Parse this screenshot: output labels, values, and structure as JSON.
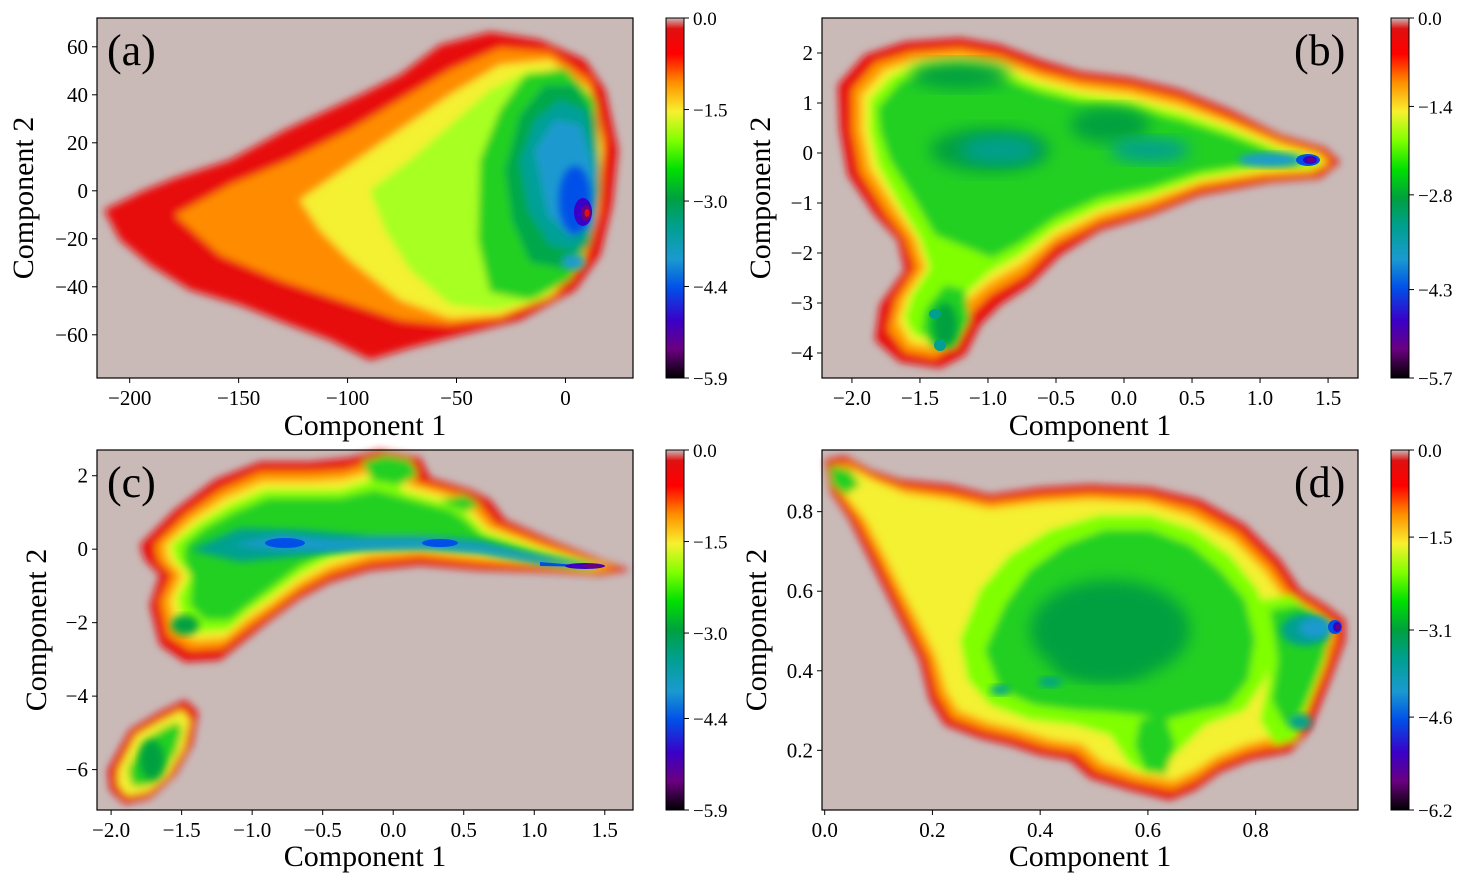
{
  "colors": {
    "background": "#c9b9b7",
    "colormap": [
      "#000000",
      "#6a0080",
      "#3a00c8",
      "#0050e8",
      "#1a9ad0",
      "#00a090",
      "#00a040",
      "#00e000",
      "#80ff00",
      "#f8f030",
      "#ff9000",
      "#ff0000",
      "#e01010"
    ]
  },
  "chart_data": [
    {
      "type": "heatmap",
      "panel_label": "(a)",
      "xlabel": "Component 1",
      "ylabel": "Component 2",
      "xlim": [
        -215,
        31
      ],
      "ylim": [
        -78,
        72
      ],
      "xticks": [
        -200,
        -150,
        -100,
        -50,
        0
      ],
      "xtick_labels": [
        "−200",
        "−150",
        "−100",
        "−50",
        "0"
      ],
      "yticks": [
        60,
        40,
        20,
        0,
        -20,
        -40,
        -60
      ],
      "ytick_labels": [
        "60",
        "40",
        "20",
        "0",
        "−20",
        "−40",
        "−60"
      ],
      "colorbar": {
        "min": -5.9,
        "max": 0.0,
        "ticks": [
          0.0,
          -1.5,
          -3.0,
          -4.4,
          -5.9
        ],
        "tick_labels": [
          "0.0",
          "−1.5",
          "−3.0",
          "−4.4",
          "−5.9"
        ]
      },
      "minimum": {
        "x": 12,
        "y": -10
      }
    },
    {
      "type": "heatmap",
      "panel_label": "(b)",
      "xlabel": "Component 1",
      "ylabel": "Component 2",
      "xlim": [
        -2.22,
        1.72
      ],
      "ylim": [
        -4.5,
        2.7
      ],
      "xticks": [
        -2.0,
        -1.5,
        -1.0,
        -0.5,
        0.0,
        0.5,
        1.0,
        1.5
      ],
      "xtick_labels": [
        "−2.0",
        "−1.5",
        "−1.0",
        "−0.5",
        "0.0",
        "0.5",
        "1.0",
        "1.5"
      ],
      "yticks": [
        2,
        1,
        0,
        -1,
        -2,
        -3,
        -4
      ],
      "ytick_labels": [
        "2",
        "1",
        "0",
        "−1",
        "−2",
        "−3",
        "−4"
      ],
      "colorbar": {
        "min": -5.7,
        "max": 0.0,
        "ticks": [
          0.0,
          -1.4,
          -2.8,
          -4.3,
          -5.7
        ],
        "tick_labels": [
          "0.0",
          "−1.4",
          "−2.8",
          "−4.3",
          "−5.7"
        ]
      },
      "minimum": {
        "x": 1.38,
        "y": -0.15
      }
    },
    {
      "type": "heatmap",
      "panel_label": "(c)",
      "xlabel": "Component 1",
      "ylabel": "Component 2",
      "xlim": [
        -2.1,
        1.7
      ],
      "ylim": [
        -7.1,
        2.7
      ],
      "xticks": [
        -2.0,
        -1.5,
        -1.0,
        -0.5,
        0.0,
        0.5,
        1.0,
        1.5
      ],
      "xtick_labels": [
        "−2.0",
        "−1.5",
        "−1.0",
        "−0.5",
        "0.0",
        "0.5",
        "1.0",
        "1.5"
      ],
      "yticks": [
        2,
        0,
        -2,
        -4,
        -6
      ],
      "ytick_labels": [
        "2",
        "0",
        "−2",
        "−4",
        "−6"
      ],
      "colorbar": {
        "min": -5.9,
        "max": 0.0,
        "ticks": [
          0.0,
          -1.5,
          -3.0,
          -4.4,
          -5.9
        ],
        "tick_labels": [
          "0.0",
          "−1.5",
          "−3.0",
          "−4.4",
          "−5.9"
        ]
      },
      "minimum": {
        "x": 1.45,
        "y": -0.5
      }
    },
    {
      "type": "heatmap",
      "panel_label": "(d)",
      "xlabel": "Component 1",
      "ylabel": "Component 2",
      "xlim": [
        -0.005,
        0.99
      ],
      "ylim": [
        0.05,
        0.955
      ],
      "xticks": [
        0.0,
        0.2,
        0.4,
        0.6,
        0.8
      ],
      "xtick_labels": [
        "0.0",
        "0.2",
        "0.4",
        "0.6",
        "0.8"
      ],
      "yticks": [
        0.8,
        0.6,
        0.4,
        0.2
      ],
      "ytick_labels": [
        "0.8",
        "0.6",
        "0.4",
        "0.2"
      ],
      "colorbar": {
        "min": -6.2,
        "max": 0.0,
        "ticks": [
          0.0,
          -1.5,
          -3.1,
          -4.6,
          -6.2
        ],
        "tick_labels": [
          "0.0",
          "−1.5",
          "−3.1",
          "−4.6",
          "−6.2"
        ]
      },
      "minimum": {
        "x": 0.96,
        "y": 0.51
      }
    }
  ]
}
